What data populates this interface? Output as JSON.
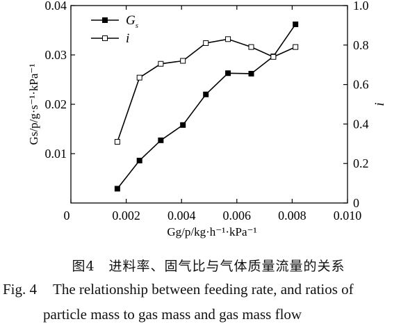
{
  "chart_data": {
    "type": "line",
    "x": [
      0.00168,
      0.00248,
      0.00325,
      0.00405,
      0.00488,
      0.00568,
      0.00652,
      0.00732,
      0.00812
    ],
    "series": [
      {
        "name": "G",
        "name_subscript": "s",
        "marker": "filled-square",
        "axis": "left",
        "values": [
          0.0029,
          0.0086,
          0.0127,
          0.0158,
          0.022,
          0.0263,
          0.0262,
          0.0297,
          0.0362
        ]
      },
      {
        "name": "i",
        "marker": "open-square",
        "axis": "right",
        "values": [
          0.31,
          0.635,
          0.705,
          0.72,
          0.81,
          0.83,
          0.79,
          0.74,
          0.79
        ]
      }
    ],
    "xlim": [
      0,
      0.01
    ],
    "ylim_left": [
      0,
      0.04
    ],
    "ylim_right": [
      0,
      1.0
    ],
    "x_ticks": [
      "0",
      "0.002",
      "0.004",
      "0.006",
      "0.008",
      "0.010"
    ],
    "y_left_ticks": [
      "0.01",
      "0.02",
      "0.03",
      "0.04"
    ],
    "y_right_ticks": [
      "0",
      "0.2",
      "0.4",
      "0.6",
      "0.8",
      "1.0"
    ],
    "xlabel": "Gg/p/kg·h⁻¹·kPa⁻¹",
    "ylabel_left": "Gs/p/g·s⁻¹·kPa⁻¹",
    "ylabel_right": "i",
    "legend_position": "top-left",
    "grid": false
  },
  "caption": {
    "cn": "图4　进料率、固气比与气体质量流量的关系",
    "en_label": "Fig. 4",
    "en_line1": "The relationship between feeding rate, and ratios of",
    "en_line2": "particle mass to gas mass and gas mass flow"
  }
}
